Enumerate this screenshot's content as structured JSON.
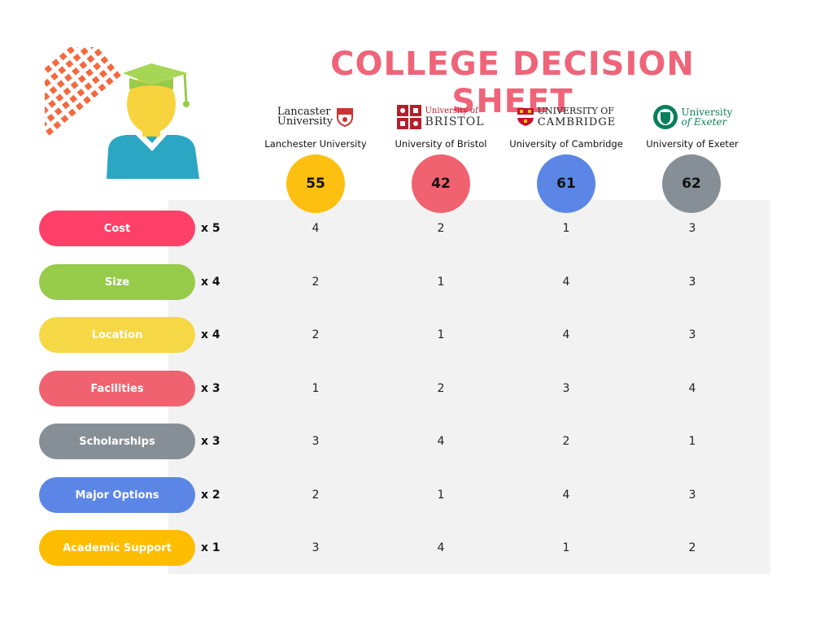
{
  "title": "COLLEGE DECISION SHEET",
  "colors": {
    "title": "#ef6479",
    "panel": "#f2f2f2"
  },
  "universities": [
    {
      "logo_line1": "Lancaster",
      "logo_line2": "University",
      "name": "Lanchester University",
      "score": "55",
      "color": "#fdc010"
    },
    {
      "logo_line1": "University of",
      "logo_line2": "BRISTOL",
      "name": "University of Bristol",
      "score": "42",
      "color": "#f0626f"
    },
    {
      "logo_line1": "UNIVERSITY OF",
      "logo_line2": "CAMBRIDGE",
      "name": "University of Cambridge",
      "score": "61",
      "color": "#5b86e5"
    },
    {
      "logo_line1": "University",
      "logo_line2": "of Exeter",
      "name": "University of Exeter",
      "score": "62",
      "color": "#878f96"
    }
  ],
  "criteria": [
    {
      "label": "Cost",
      "weight": "x 5",
      "color": "#ff4069",
      "scores": [
        "4",
        "2",
        "1",
        "3"
      ]
    },
    {
      "label": "Size",
      "weight": "x 4",
      "color": "#97cb4a",
      "scores": [
        "2",
        "1",
        "4",
        "3"
      ]
    },
    {
      "label": "Location",
      "weight": "x 4",
      "color": "#f6d846",
      "scores": [
        "2",
        "1",
        "4",
        "3"
      ]
    },
    {
      "label": "Facilities",
      "weight": "x 3",
      "color": "#f0626f",
      "scores": [
        "1",
        "2",
        "3",
        "4"
      ]
    },
    {
      "label": "Scholarships",
      "weight": "x 3",
      "color": "#878f96",
      "scores": [
        "3",
        "4",
        "2",
        "1"
      ]
    },
    {
      "label": "Major Options",
      "weight": "x 2",
      "color": "#5b86e5",
      "scores": [
        "2",
        "1",
        "4",
        "3"
      ]
    },
    {
      "label": "Academic Support",
      "weight": "x 1",
      "color": "#ffbd00",
      "scores": [
        "3",
        "4",
        "1",
        "2"
      ]
    }
  ]
}
